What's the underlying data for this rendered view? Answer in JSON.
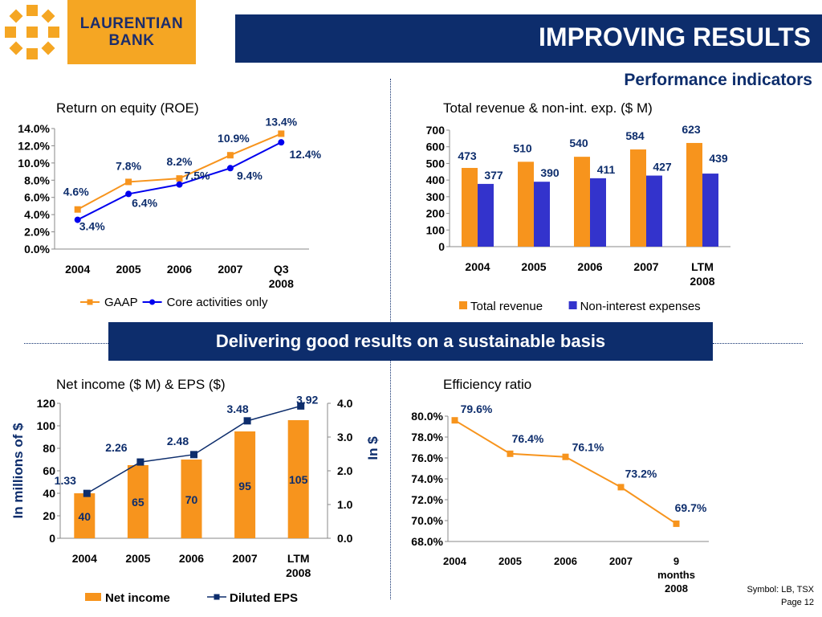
{
  "header": {
    "bank_name_line1": "LAURENTIAN",
    "bank_name_line2": "BANK",
    "title": "IMPROVING RESULTS",
    "subtitle": "Performance indicators"
  },
  "banner": "Delivering good results on a sustainable basis",
  "footer": {
    "symbol": "Symbol: LB, TSX",
    "page": "Page 12"
  },
  "colors": {
    "navy": "#0d2d6c",
    "orange": "#f5a623",
    "series_orange": "#f7941d",
    "series_blue": "#3333cc"
  },
  "chart_data": [
    {
      "type": "line",
      "title": "Return on equity (ROE)",
      "categories": [
        [
          "2004"
        ],
        [
          "2005"
        ],
        [
          "2006"
        ],
        [
          "2007"
        ],
        [
          "Q3",
          "2008"
        ]
      ],
      "yticks": [
        "0.0%",
        "2.0%",
        "4.0%",
        "6.0%",
        "8.0%",
        "10.0%",
        "12.0%",
        "14.0%"
      ],
      "ylim": [
        0,
        14
      ],
      "series": [
        {
          "name": "GAAP",
          "values": [
            4.6,
            7.8,
            8.2,
            10.9,
            13.4
          ],
          "labels": [
            "4.6%",
            "7.8%",
            "8.2%",
            "10.9%",
            "13.4%"
          ],
          "color": "#f7941d",
          "marker": "square"
        },
        {
          "name": "Core activities only",
          "values": [
            3.4,
            6.4,
            7.5,
            9.4,
            12.4
          ],
          "labels": [
            "3.4%",
            "6.4%",
            "7.5%",
            "9.4%",
            "12.4%"
          ],
          "color": "#0000ee",
          "marker": "circle"
        }
      ],
      "legend": "bottom"
    },
    {
      "type": "bar",
      "title": "Total revenue & non-int. exp. ($ M)",
      "categories": [
        [
          "2004"
        ],
        [
          "2005"
        ],
        [
          "2006"
        ],
        [
          "2007"
        ],
        [
          "LTM",
          "2008"
        ]
      ],
      "yticks": [
        "0",
        "100",
        "200",
        "300",
        "400",
        "500",
        "600",
        "700"
      ],
      "ylim": [
        0,
        700
      ],
      "series": [
        {
          "name": "Total revenue",
          "values": [
            473,
            510,
            540,
            584,
            623
          ],
          "labels": [
            "473",
            "510",
            "540",
            "584",
            "623"
          ],
          "color": "#f7941d"
        },
        {
          "name": "Non-interest expenses",
          "values": [
            377,
            390,
            411,
            427,
            439
          ],
          "labels": [
            "377",
            "390",
            "411",
            "427",
            "439"
          ],
          "color": "#3333cc"
        }
      ],
      "legend": "bottom"
    },
    {
      "type": "bar",
      "title": "Net income ($ M) & EPS ($)",
      "categories": [
        [
          "2004"
        ],
        [
          "2005"
        ],
        [
          "2006"
        ],
        [
          "2007"
        ],
        [
          "LTM",
          "2008"
        ]
      ],
      "ylabel": "In millions of $",
      "y2label": "In $",
      "yticks": [
        "0",
        "20",
        "40",
        "60",
        "80",
        "100",
        "120"
      ],
      "ylim": [
        0,
        120
      ],
      "y2ticks": [
        "0.0",
        "1.0",
        "2.0",
        "3.0",
        "4.0"
      ],
      "y2lim": [
        0,
        4
      ],
      "series": [
        {
          "name": "Net income",
          "type": "bar",
          "axis": "left",
          "values": [
            40,
            65,
            70,
            95,
            105
          ],
          "labels": [
            "40",
            "65",
            "70",
            "95",
            "105"
          ],
          "color": "#f7941d"
        },
        {
          "name": "Diluted EPS",
          "type": "line",
          "axis": "right",
          "values": [
            1.33,
            2.26,
            2.48,
            3.48,
            3.92
          ],
          "labels": [
            "1.33",
            "2.26",
            "2.48",
            "3.48",
            "3.92"
          ],
          "color": "#0d2d6c",
          "marker": "square"
        }
      ],
      "legend": "bottom"
    },
    {
      "type": "line",
      "title": "Efficiency ratio",
      "categories": [
        [
          "2004"
        ],
        [
          "2005"
        ],
        [
          "2006"
        ],
        [
          "2007"
        ],
        [
          "9",
          "months",
          "2008"
        ]
      ],
      "yticks": [
        "68.0%",
        "70.0%",
        "72.0%",
        "74.0%",
        "76.0%",
        "78.0%",
        "80.0%"
      ],
      "ylim": [
        68,
        80
      ],
      "series": [
        {
          "name": "",
          "values": [
            79.6,
            76.4,
            76.1,
            73.2,
            69.7
          ],
          "labels": [
            "79.6%",
            "76.4%",
            "76.1%",
            "73.2%",
            "69.7%"
          ],
          "color": "#f7941d",
          "marker": "square"
        }
      ]
    }
  ]
}
